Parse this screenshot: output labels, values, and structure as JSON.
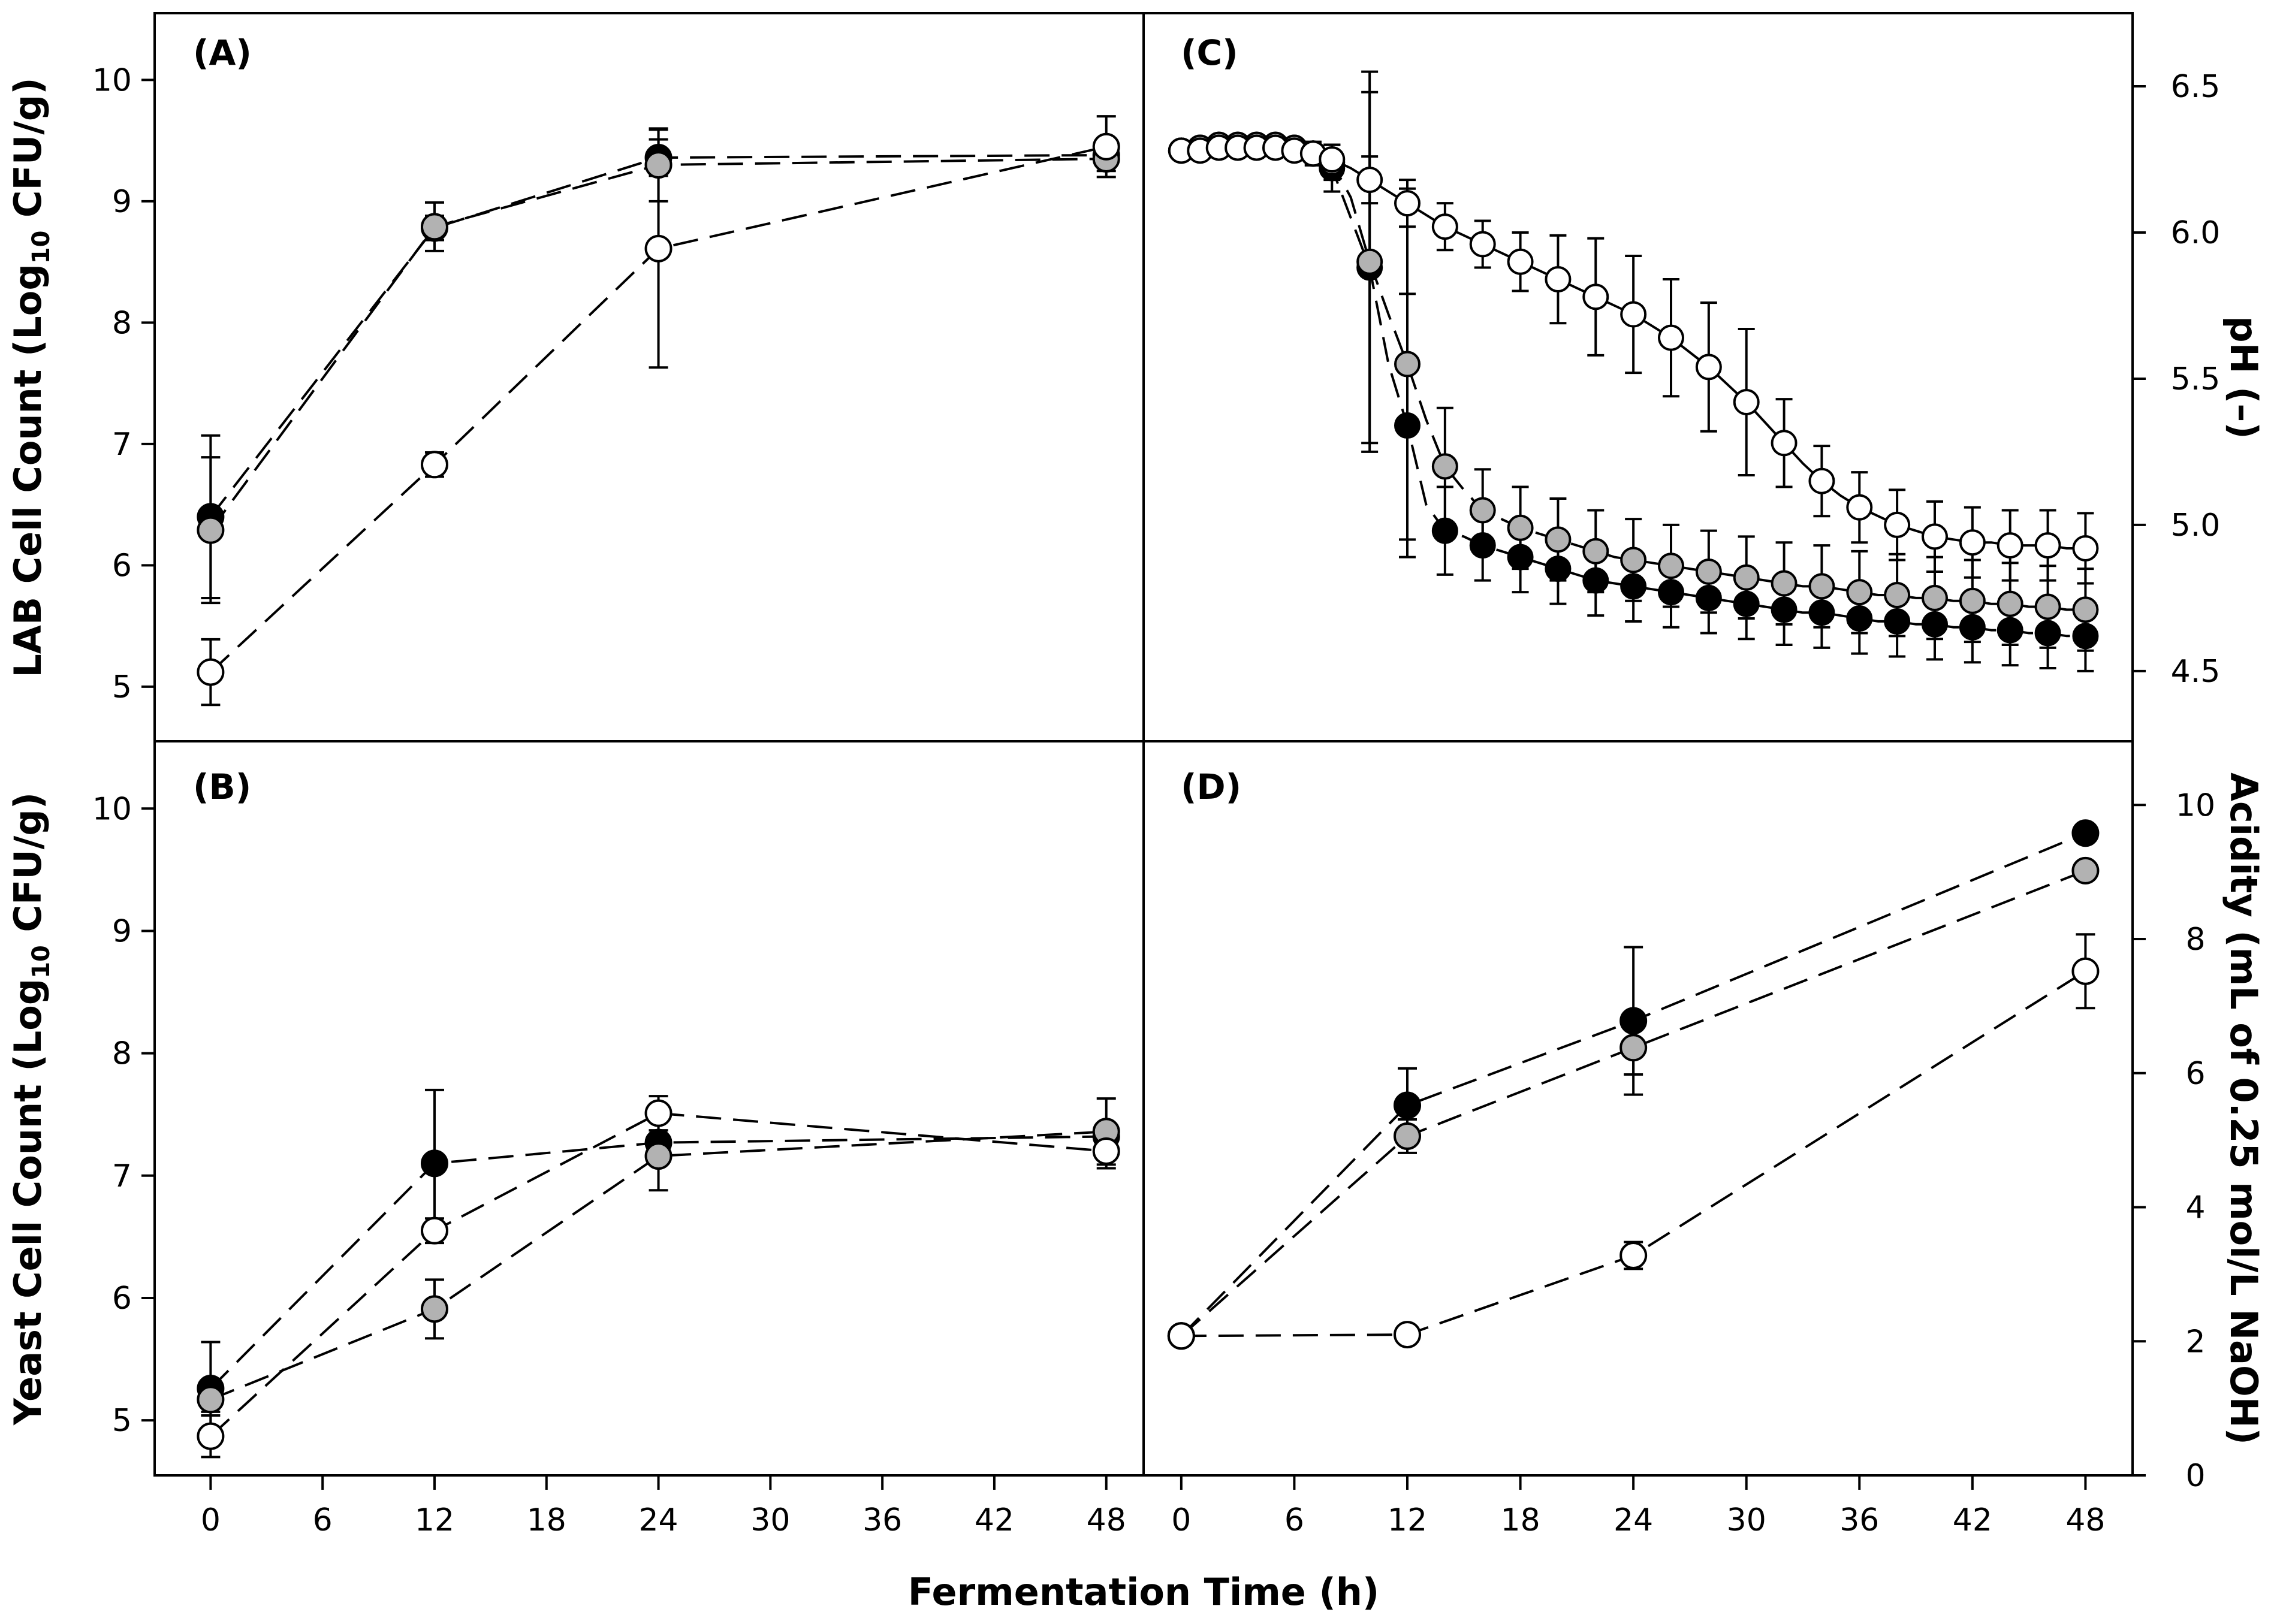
{
  "figure": {
    "x_axis_title": "Fermentation Time (h)",
    "x_ticks": [
      "0",
      "6",
      "12",
      "18",
      "24",
      "30",
      "36",
      "42",
      "48"
    ]
  },
  "colors": {
    "black": "#000000",
    "gray": "#b2b2b2",
    "white": "#ffffff"
  },
  "chart_data": [
    {
      "panel": "(A)",
      "type": "line",
      "ylabel": "LAB Cell Count (Log10 CFU/g)",
      "ylim": [
        4.55,
        10.55
      ],
      "yticks": [
        5,
        6,
        7,
        8,
        9,
        10
      ],
      "xlim": [
        -3,
        50
      ],
      "series": [
        {
          "marker": "black",
          "style": "dashed",
          "x": [
            0,
            12,
            24,
            48
          ],
          "y": [
            6.4,
            8.78,
            9.36,
            9.38
          ],
          "err": [
            0.67,
            0.1,
            0.15,
            0.1
          ]
        },
        {
          "marker": "gray",
          "style": "dashed",
          "x": [
            0,
            12,
            24,
            48
          ],
          "y": [
            6.29,
            8.79,
            9.3,
            9.35
          ],
          "err": [
            0.6,
            0.2,
            0.3,
            0.1
          ]
        },
        {
          "marker": "white",
          "style": "dashed",
          "x": [
            0,
            12,
            24,
            48
          ],
          "y": [
            5.12,
            6.83,
            8.61,
            9.45
          ],
          "err": [
            0.27,
            0.1,
            0.98,
            0.25
          ]
        }
      ]
    },
    {
      "panel": "(B)",
      "type": "line",
      "ylabel": "Yeast Cell Count (Log10 CFU/g)",
      "ylim": [
        4.55,
        10.55
      ],
      "yticks": [
        5,
        6,
        7,
        8,
        9,
        10
      ],
      "xlim": [
        -3,
        50
      ],
      "series": [
        {
          "marker": "black",
          "style": "dashed",
          "x": [
            0,
            12,
            24,
            48
          ],
          "y": [
            5.26,
            7.1,
            7.27,
            7.32
          ],
          "err": [
            0.38,
            0.6,
            0.1,
            0.1
          ]
        },
        {
          "marker": "gray",
          "style": "dashed",
          "x": [
            0,
            12,
            24,
            48
          ],
          "y": [
            5.17,
            5.91,
            7.16,
            7.36
          ],
          "err": [
            0.1,
            0.24,
            0.28,
            0.27
          ]
        },
        {
          "marker": "white",
          "style": "dashed",
          "x": [
            0,
            12,
            24,
            48
          ],
          "y": [
            4.87,
            6.55,
            7.51,
            7.2
          ],
          "err": [
            0.17,
            0.1,
            0.14,
            0.14
          ]
        }
      ]
    },
    {
      "panel": "(C)",
      "type": "line",
      "ylabel": "pH (–)",
      "ylim": [
        4.26,
        6.75
      ],
      "yticks": [
        "4.5",
        "5.0",
        "5.5",
        "6.0",
        "6.5"
      ],
      "xlim": [
        -2,
        50.5
      ],
      "series": [
        {
          "marker": "black",
          "style": "dashed",
          "x": [
            0,
            1,
            2,
            3,
            4,
            5,
            6,
            7,
            8,
            9,
            10,
            11,
            12,
            13,
            14,
            15,
            16,
            17,
            18,
            19,
            20,
            21,
            22,
            23,
            24,
            25,
            26,
            27,
            28,
            29,
            30,
            31,
            32,
            33,
            34,
            35,
            36,
            37,
            38,
            39,
            40,
            41,
            42,
            43,
            44,
            45,
            46,
            47,
            48
          ],
          "y": [
            6.28,
            6.29,
            6.3,
            6.3,
            6.3,
            6.3,
            6.29,
            6.27,
            6.22,
            6.05,
            5.88,
            5.55,
            5.34,
            5.07,
            4.98,
            4.96,
            4.93,
            4.91,
            4.89,
            4.87,
            4.85,
            4.83,
            4.81,
            4.8,
            4.79,
            4.78,
            4.77,
            4.76,
            4.75,
            4.74,
            4.73,
            4.72,
            4.71,
            4.7,
            4.7,
            4.69,
            4.68,
            4.67,
            4.67,
            4.66,
            4.66,
            4.65,
            4.65,
            4.64,
            4.64,
            4.63,
            4.63,
            4.62,
            4.62
          ],
          "err": [
            0,
            0,
            0,
            0,
            0,
            0,
            0,
            0.04,
            0.08,
            0.32,
            0.6,
            0.67,
            0.45,
            0.2,
            0.15,
            0.12,
            0.12,
            0.12,
            0.12,
            0.12,
            0.12,
            0.12,
            0.12,
            0.12,
            0.12,
            0.12,
            0.12,
            0.12,
            0.12,
            0.12,
            0.12,
            0.12,
            0.12,
            0.12,
            0.12,
            0.12,
            0.12,
            0.12,
            0.12,
            0.12,
            0.12,
            0.12,
            0.12,
            0.12,
            0.12,
            0.12,
            0.12,
            0.12,
            0.12
          ],
          "marker_x": [
            0,
            1,
            2,
            3,
            4,
            5,
            6,
            7,
            8,
            9,
            10,
            11,
            12,
            13,
            14,
            15,
            16,
            17,
            18,
            19,
            20,
            21,
            22,
            23,
            24,
            25,
            26,
            27,
            28,
            29,
            30,
            31,
            32,
            33,
            34,
            35,
            36,
            37,
            38,
            39,
            40,
            41,
            42,
            43,
            44,
            45,
            46,
            47,
            48
          ]
        },
        {
          "marker": "gray",
          "style": "dashed",
          "x": [
            0,
            1,
            2,
            3,
            4,
            5,
            6,
            7,
            8,
            9,
            10,
            11,
            12,
            13,
            14,
            15,
            16,
            17,
            18,
            19,
            20,
            21,
            22,
            23,
            24,
            25,
            26,
            27,
            28,
            29,
            30,
            31,
            32,
            33,
            34,
            35,
            36,
            37,
            38,
            39,
            40,
            41,
            42,
            43,
            44,
            45,
            46,
            47,
            48
          ],
          "y": [
            6.28,
            6.29,
            6.3,
            6.3,
            6.3,
            6.3,
            6.29,
            6.27,
            6.24,
            6.12,
            5.9,
            5.72,
            5.55,
            5.36,
            5.2,
            5.12,
            5.05,
            5.02,
            4.99,
            4.97,
            4.95,
            4.93,
            4.91,
            4.89,
            4.88,
            4.87,
            4.86,
            4.85,
            4.84,
            4.83,
            4.82,
            4.81,
            4.8,
            4.79,
            4.79,
            4.78,
            4.77,
            4.76,
            4.76,
            4.75,
            4.75,
            4.74,
            4.74,
            4.73,
            4.73,
            4.72,
            4.72,
            4.71,
            4.71
          ],
          "err": [
            0,
            0,
            0,
            0,
            0,
            0,
            0,
            0.04,
            0.06,
            0.2,
            0.65,
            0.7,
            0.6,
            0.3,
            0.2,
            0.15,
            0.14,
            0.14,
            0.14,
            0.14,
            0.14,
            0.14,
            0.14,
            0.14,
            0.14,
            0.14,
            0.14,
            0.14,
            0.14,
            0.14,
            0.14,
            0.14,
            0.14,
            0.14,
            0.14,
            0.14,
            0.14,
            0.14,
            0.14,
            0.14,
            0.14,
            0.14,
            0.14,
            0.14,
            0.14,
            0.14,
            0.14,
            0.14,
            0.14
          ]
        },
        {
          "marker": "white",
          "style": "solid",
          "x": [
            0,
            1,
            2,
            3,
            4,
            5,
            6,
            7,
            8,
            9,
            10,
            11,
            12,
            13,
            14,
            15,
            16,
            17,
            18,
            19,
            20,
            21,
            22,
            23,
            24,
            25,
            26,
            27,
            28,
            29,
            30,
            31,
            32,
            33,
            34,
            35,
            36,
            37,
            38,
            39,
            40,
            41,
            42,
            43,
            44,
            45,
            46,
            47,
            48
          ],
          "y": [
            6.28,
            6.28,
            6.29,
            6.29,
            6.29,
            6.29,
            6.28,
            6.27,
            6.25,
            6.22,
            6.18,
            6.14,
            6.1,
            6.06,
            6.02,
            5.99,
            5.96,
            5.93,
            5.9,
            5.87,
            5.84,
            5.81,
            5.78,
            5.75,
            5.72,
            5.68,
            5.64,
            5.59,
            5.54,
            5.48,
            5.42,
            5.35,
            5.28,
            5.21,
            5.15,
            5.1,
            5.06,
            5.03,
            5.0,
            4.98,
            4.96,
            4.95,
            4.94,
            4.94,
            4.93,
            4.93,
            4.93,
            4.92,
            4.92
          ],
          "err": [
            0,
            0,
            0,
            0,
            0,
            0,
            0,
            0.03,
            0.05,
            0.06,
            0.08,
            0.08,
            0.08,
            0.08,
            0.08,
            0.08,
            0.08,
            0.1,
            0.1,
            0.12,
            0.15,
            0.17,
            0.2,
            0.2,
            0.2,
            0.2,
            0.2,
            0.22,
            0.22,
            0.25,
            0.25,
            0.2,
            0.15,
            0.12,
            0.12,
            0.12,
            0.12,
            0.12,
            0.12,
            0.12,
            0.12,
            0.12,
            0.12,
            0.12,
            0.12,
            0.12,
            0.12,
            0.12,
            0.12
          ]
        }
      ]
    },
    {
      "panel": "(D)",
      "type": "line",
      "ylabel": "Acidity (mL of 0.25 mol/L NaOH)",
      "ylim": [
        0,
        10.95
      ],
      "yticks": [
        0,
        2,
        4,
        6,
        8,
        10
      ],
      "xlim": [
        -2,
        50.5
      ],
      "series": [
        {
          "marker": "black",
          "style": "dashed",
          "x": [
            0,
            12,
            24,
            48
          ],
          "y": [
            2.08,
            5.52,
            6.78,
            9.58
          ],
          "err": [
            0,
            0.55,
            1.1,
            0
          ]
        },
        {
          "marker": "gray",
          "style": "dashed",
          "x": [
            0,
            12,
            24,
            48
          ],
          "y": [
            2.08,
            5.06,
            6.38,
            9.02
          ],
          "err": [
            0,
            0.25,
            0.4,
            0
          ]
        },
        {
          "marker": "white",
          "style": "dashed",
          "x": [
            0,
            12,
            24,
            48
          ],
          "y": [
            2.08,
            2.1,
            3.28,
            7.52
          ],
          "err": [
            0,
            0,
            0.2,
            0.55
          ]
        }
      ]
    }
  ]
}
